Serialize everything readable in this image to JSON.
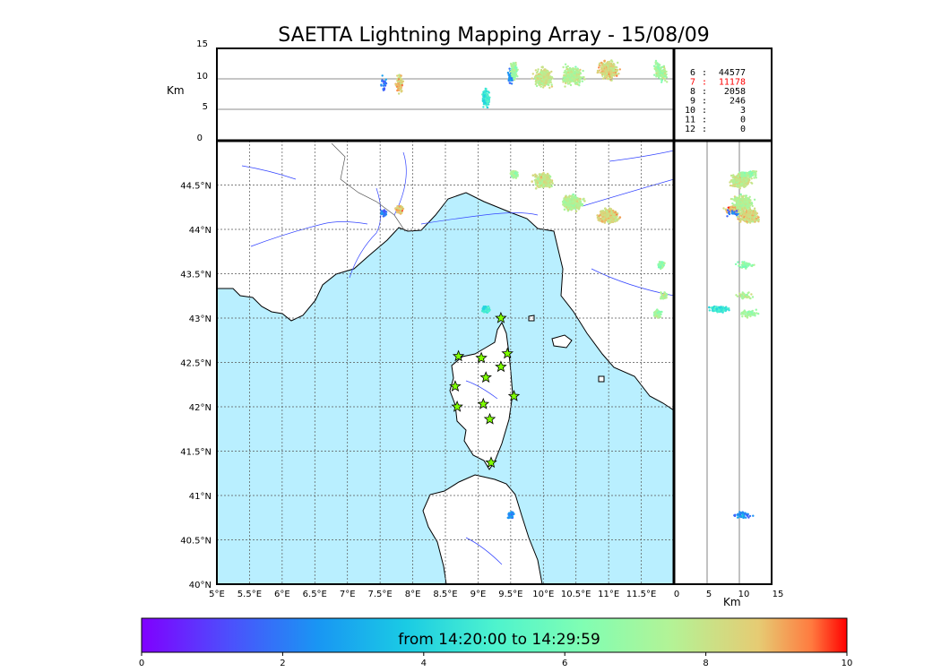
{
  "title": "SAETTA Lightning Mapping Array - 15/08/09",
  "altitude_unit": "Km",
  "colors": {
    "sea": "#b9efff",
    "land": "#ffffff",
    "coast": "#000000",
    "rivers": "#3344ff",
    "borders": "#555555",
    "grid": "#555555",
    "station_fill": "#7fff00",
    "highlight_count": "#ff0000"
  },
  "chart_data": {
    "type": "scatter",
    "map": {
      "lon_range": [
        5,
        12
      ],
      "lat_range": [
        40,
        45
      ],
      "lon_ticks": [
        "5°E",
        "5.5°E",
        "6°E",
        "6.5°E",
        "7°E",
        "7.5°E",
        "8°E",
        "8.5°E",
        "9°E",
        "9.5°E",
        "10°E",
        "10.5°E",
        "11°E",
        "11.5°E"
      ],
      "lat_ticks": [
        "40°N",
        "40.5°N",
        "41°N",
        "41.5°N",
        "42°N",
        "42.5°N",
        "43°N",
        "43.5°N",
        "44°N",
        "44.5°N"
      ],
      "grid": true
    },
    "altitude_axis": {
      "label": "Km",
      "range": [
        0,
        15
      ],
      "ticks": [
        "0",
        "5",
        "10",
        "15"
      ]
    },
    "stations": [
      {
        "lon": 8.7,
        "lat": 42.57
      },
      {
        "lon": 9.05,
        "lat": 42.55
      },
      {
        "lon": 9.45,
        "lat": 42.6
      },
      {
        "lon": 9.35,
        "lat": 42.45
      },
      {
        "lon": 9.12,
        "lat": 42.33
      },
      {
        "lon": 8.65,
        "lat": 42.23
      },
      {
        "lon": 9.55,
        "lat": 42.12
      },
      {
        "lon": 9.08,
        "lat": 42.03
      },
      {
        "lon": 8.68,
        "lat": 42.0
      },
      {
        "lon": 9.18,
        "lat": 41.86
      },
      {
        "lon": 9.2,
        "lat": 41.37
      },
      {
        "lon": 9.35,
        "lat": 43.0
      }
    ],
    "clusters": [
      {
        "lon": 7.8,
        "lat": 44.22,
        "alt": 9.3,
        "time": 8.7,
        "n": 140
      },
      {
        "lon": 7.55,
        "lat": 44.18,
        "alt": 9.0,
        "time": 2.0,
        "n": 20
      },
      {
        "lon": 9.12,
        "lat": 43.1,
        "alt": 7.0,
        "time": 4.6,
        "n": 160
      },
      {
        "lon": 9.5,
        "lat": 40.78,
        "alt": 10.5,
        "time": 2.5,
        "n": 50
      },
      {
        "lon": 10.0,
        "lat": 44.55,
        "alt": 10.2,
        "time": 8.0,
        "n": 330
      },
      {
        "lon": 10.45,
        "lat": 44.3,
        "alt": 10.5,
        "time": 7.6,
        "n": 330
      },
      {
        "lon": 11.0,
        "lat": 44.15,
        "alt": 11.5,
        "time": 8.4,
        "n": 330
      },
      {
        "lon": 11.8,
        "lat": 43.6,
        "alt": 11.0,
        "time": 6.5,
        "n": 60
      },
      {
        "lon": 11.75,
        "lat": 43.05,
        "alt": 11.5,
        "time": 7.0,
        "n": 60
      },
      {
        "lon": 11.85,
        "lat": 43.25,
        "alt": 11.0,
        "time": 7.5,
        "n": 40
      },
      {
        "lon": 9.55,
        "lat": 44.62,
        "alt": 11.5,
        "time": 7.0,
        "n": 110
      }
    ],
    "flash_counts": [
      {
        "level": "6",
        "count": "44577"
      },
      {
        "level": "7",
        "count": "11178"
      },
      {
        "level": "8",
        "count": "2058"
      },
      {
        "level": "9",
        "count": "246"
      },
      {
        "level": "10",
        "count": "3"
      },
      {
        "level": "11",
        "count": "0"
      },
      {
        "level": "12",
        "count": "0"
      }
    ],
    "highlighted_level": "7",
    "colorbar": {
      "label": "from 14:20:00 to 14:29:59",
      "range": [
        0,
        10
      ],
      "ticks": [
        "0",
        "2",
        "4",
        "6",
        "8",
        "10"
      ],
      "colormap": "rainbow"
    }
  }
}
